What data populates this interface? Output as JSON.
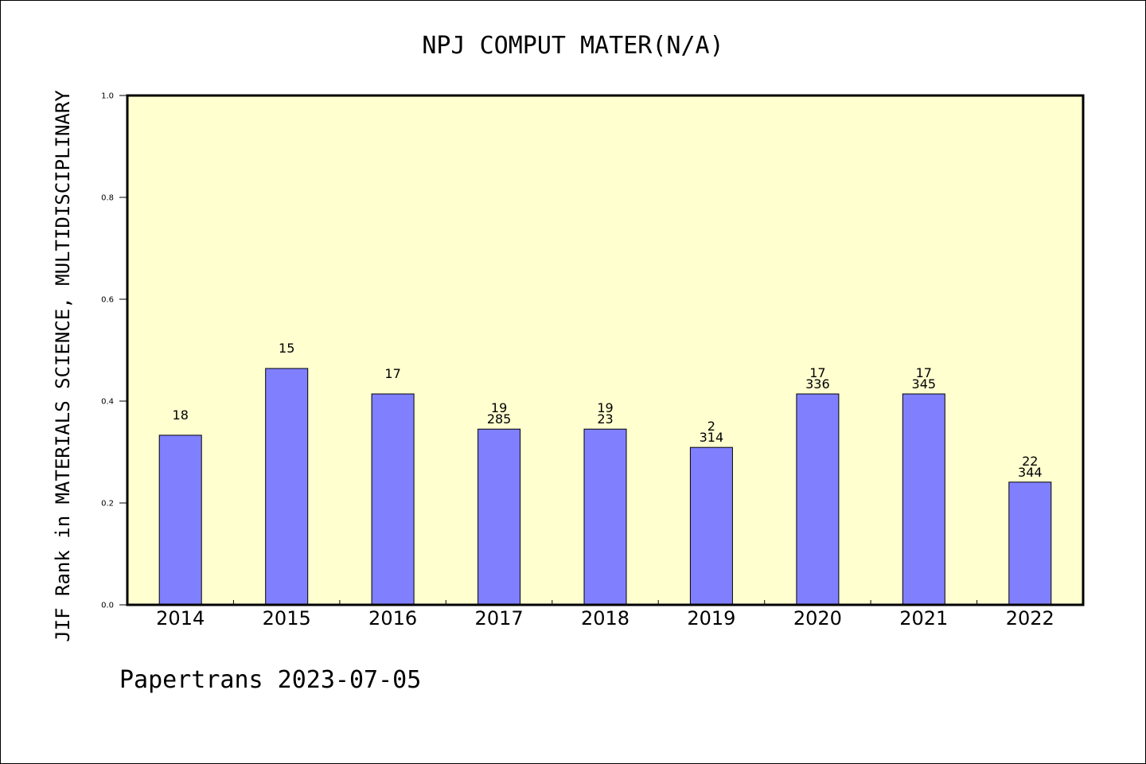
{
  "chart_data": {
    "type": "bar",
    "title": "NPJ COMPUT MATER(N/A)",
    "xlabel": "",
    "ylabel": "JIF Rank in MATERIALS SCIENCE, MULTIDISCIPLINARY",
    "ylim": [
      0,
      1.0
    ],
    "yticks": [
      "0.0",
      "0.2",
      "0.4",
      "0.6",
      "0.8",
      "1.0"
    ],
    "categories": [
      "2014",
      "2015",
      "2016",
      "2017",
      "2018",
      "2019",
      "2020",
      "2021",
      "2022"
    ],
    "values": [
      0.333,
      0.464,
      0.414,
      0.345,
      0.345,
      0.309,
      0.414,
      0.414,
      0.241
    ],
    "rank_labels": [
      "18",
      "15",
      "17",
      "19",
      "19",
      "2",
      "17",
      "17",
      "22"
    ],
    "total_labels": [
      "",
      "",
      "",
      "285",
      "23",
      "314",
      "336",
      "345",
      "344"
    ],
    "grid": false,
    "legend": "none",
    "bar_color": "#8080ff",
    "plot_background": "#ffffd0"
  },
  "footer": "Papertrans 2023-07-05"
}
